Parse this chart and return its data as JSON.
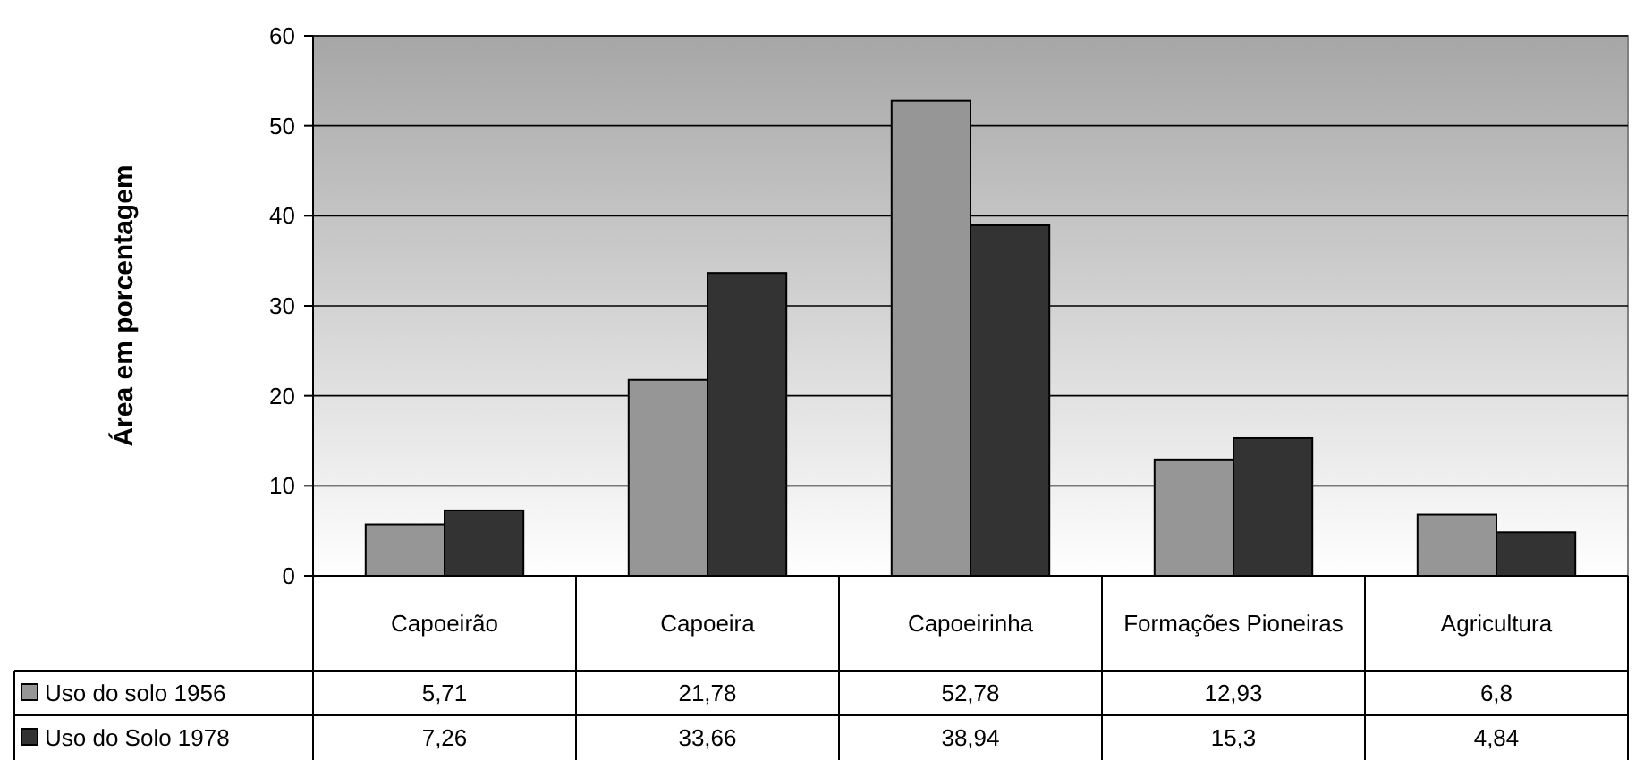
{
  "chart_data": {
    "type": "bar",
    "ylabel": "Área em porcentagem",
    "categories": [
      "Capoeirão",
      "Capoeira",
      "Capoeirinha",
      "Formações Pioneiras",
      "Agricultura"
    ],
    "series": [
      {
        "name": "Uso do solo 1956",
        "color": "#969696",
        "values": [
          5.71,
          21.78,
          52.78,
          12.93,
          6.8
        ],
        "value_labels": [
          "5,71",
          "21,78",
          "52,78",
          "12,93",
          "6,8"
        ]
      },
      {
        "name": "Uso do Solo 1978",
        "color": "#333333",
        "values": [
          7.26,
          33.66,
          38.94,
          15.3,
          4.84
        ],
        "value_labels": [
          "7,26",
          "33,66",
          "38,94",
          "15,3",
          "4,84"
        ]
      }
    ],
    "ylim": [
      0,
      60
    ],
    "yticks": [
      0,
      10,
      20,
      30,
      40,
      50,
      60
    ],
    "grid": "y",
    "legend": "bottom left"
  }
}
